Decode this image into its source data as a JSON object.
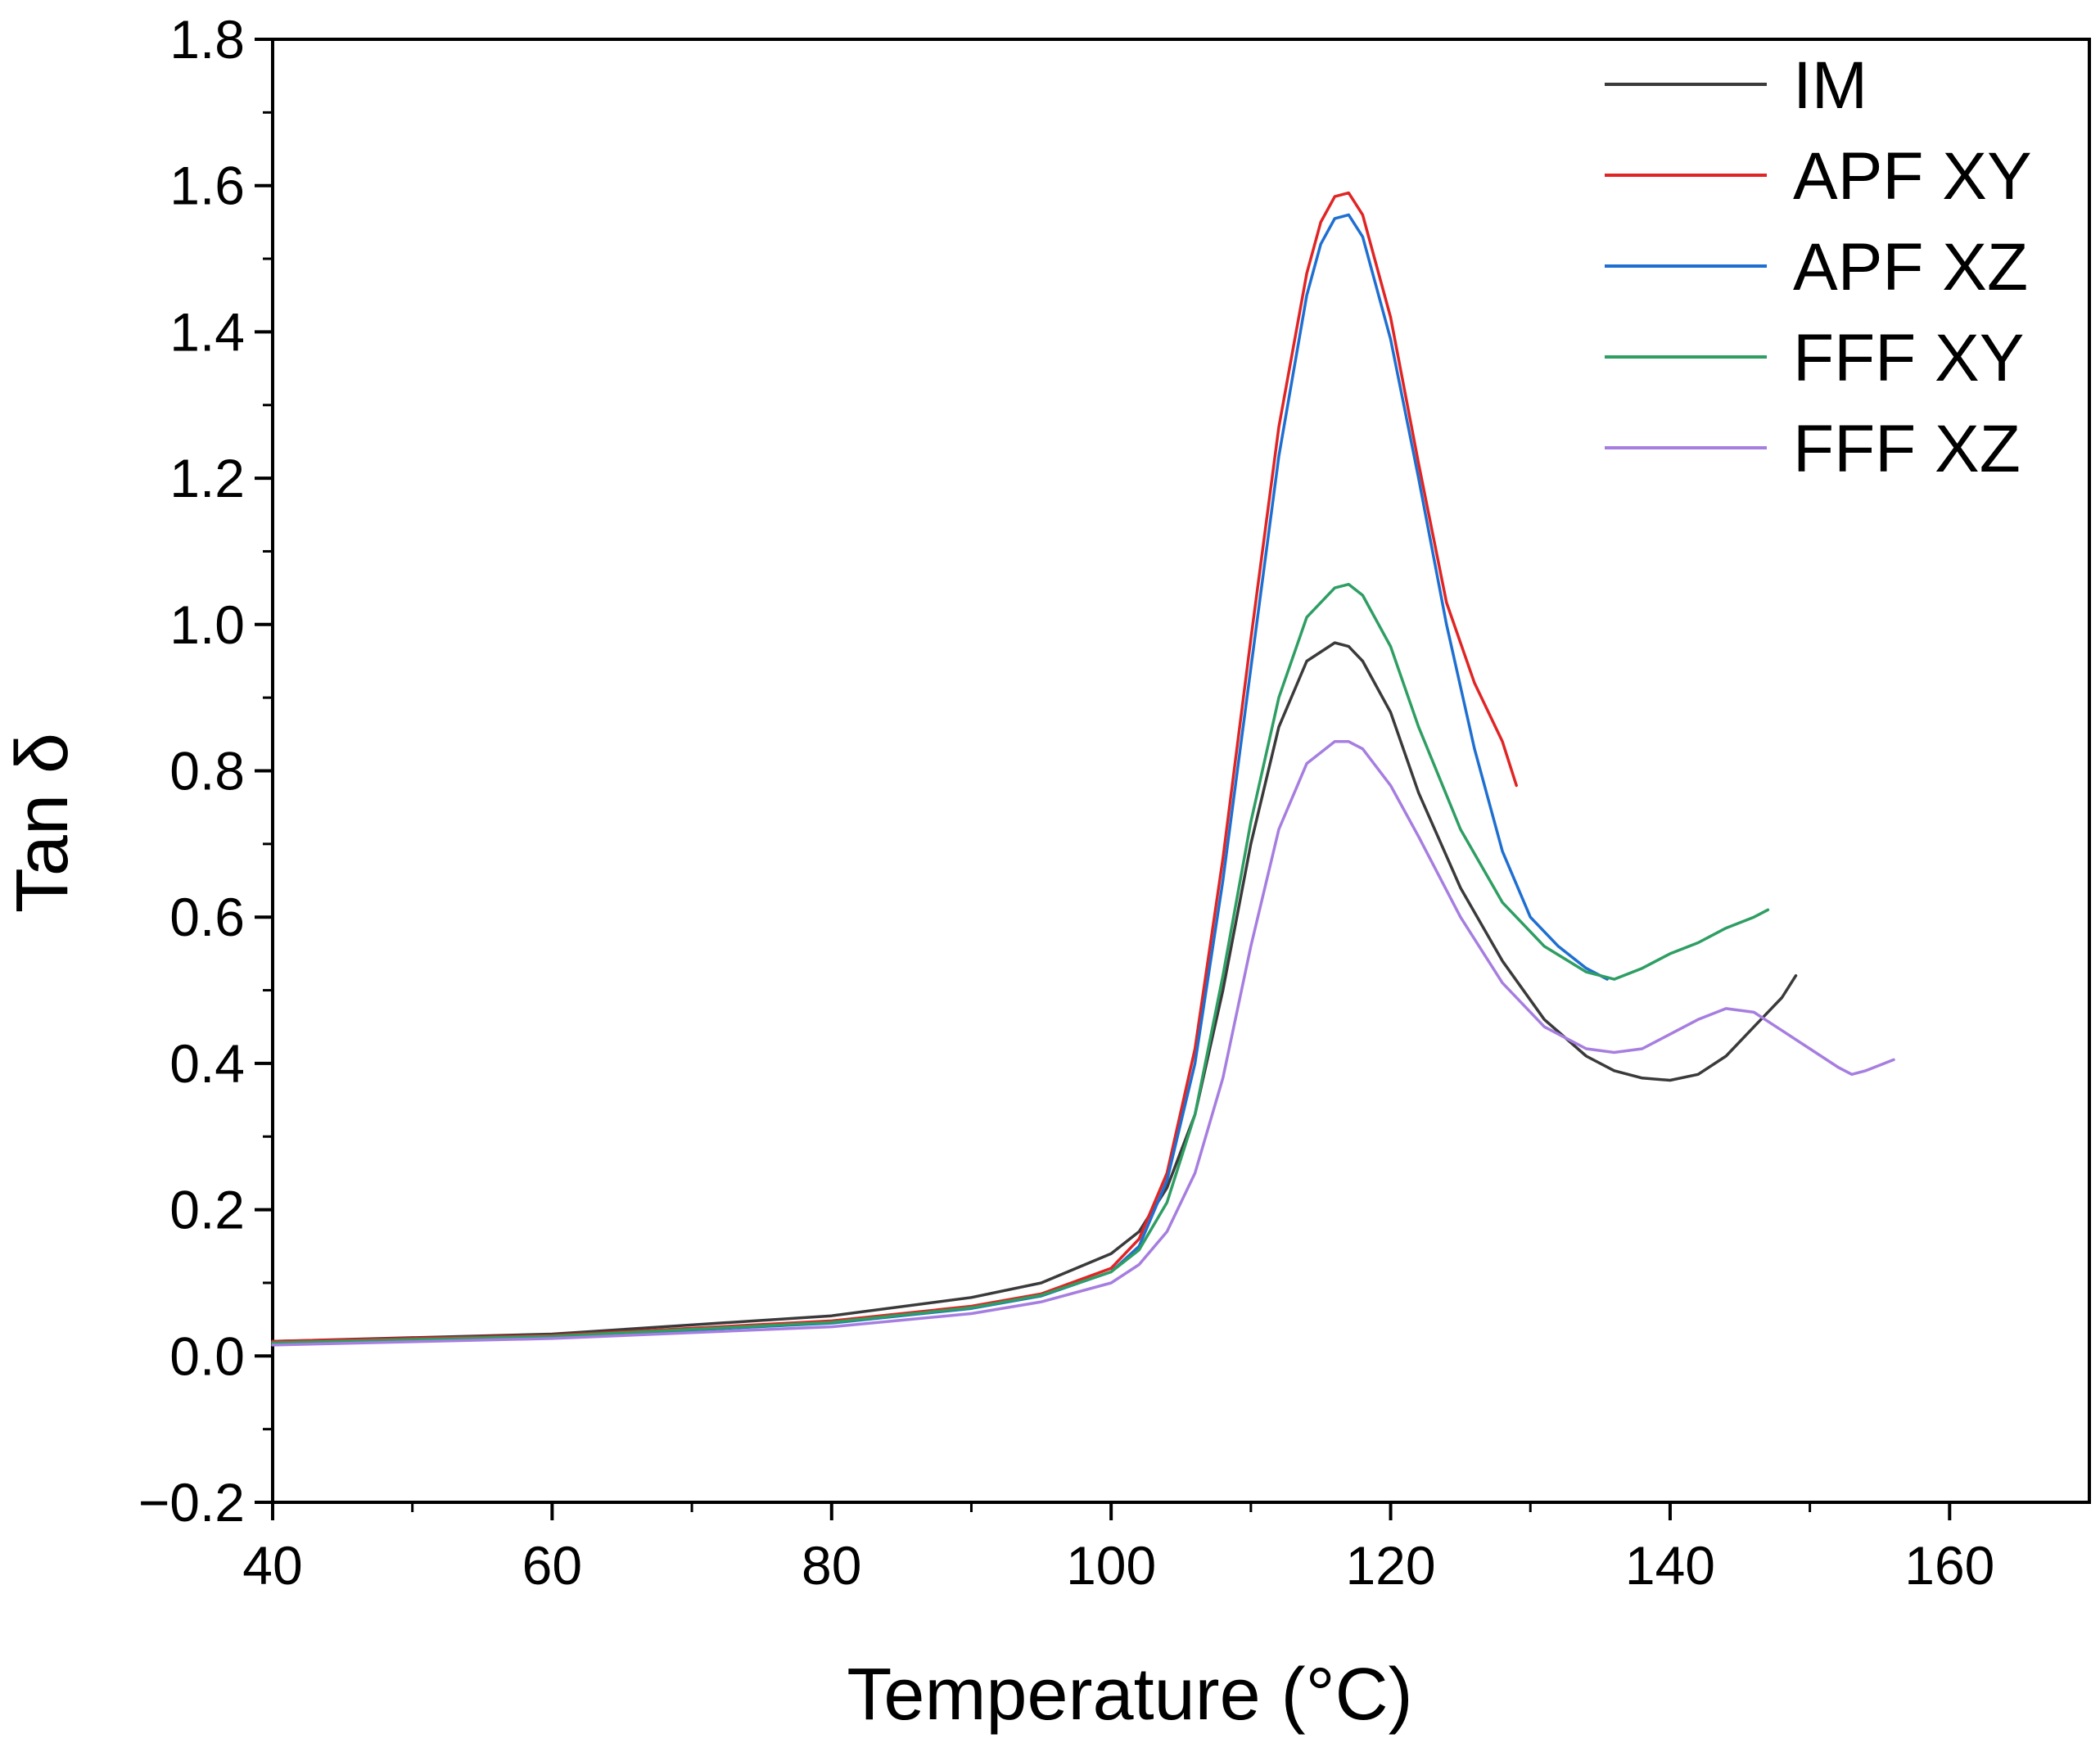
{
  "chart_data": {
    "type": "line",
    "title": "",
    "xlabel": "Temperature (°C)",
    "ylabel": "Tan δ",
    "xlim": [
      40,
      170
    ],
    "ylim": [
      -0.2,
      1.8
    ],
    "xticks": [
      40,
      60,
      80,
      100,
      120,
      140,
      160
    ],
    "xtick_labels": [
      "40",
      "60",
      "80",
      "100",
      "120",
      "140",
      "160"
    ],
    "yticks": [
      -0.2,
      0.0,
      0.2,
      0.4,
      0.6,
      0.8,
      1.0,
      1.2,
      1.4,
      1.6,
      1.8
    ],
    "ytick_labels": [
      "−0.2",
      "0.0",
      "0.2",
      "0.4",
      "0.6",
      "0.8",
      "1.0",
      "1.2",
      "1.4",
      "1.6",
      "1.8"
    ],
    "grid": false,
    "legend_position": "top-right",
    "series": [
      {
        "name": "IM",
        "color": "#3a3a3a",
        "x": [
          40,
          60,
          80,
          90,
          95,
          100,
          102,
          104,
          106,
          108,
          110,
          112,
          114,
          116,
          117,
          118,
          120,
          122,
          125,
          128,
          131,
          134,
          136,
          138,
          140,
          142,
          144,
          146,
          148,
          149
        ],
        "y": [
          0.02,
          0.03,
          0.055,
          0.08,
          0.1,
          0.14,
          0.17,
          0.23,
          0.33,
          0.5,
          0.7,
          0.86,
          0.95,
          0.975,
          0.97,
          0.95,
          0.88,
          0.77,
          0.64,
          0.54,
          0.46,
          0.41,
          0.39,
          0.38,
          0.377,
          0.385,
          0.41,
          0.45,
          0.49,
          0.52
        ]
      },
      {
        "name": "APF XY",
        "color": "#e02525",
        "x": [
          40,
          60,
          80,
          90,
          95,
          100,
          102,
          104,
          106,
          108,
          110,
          112,
          114,
          115,
          116,
          117,
          118,
          120,
          122,
          124,
          126,
          128,
          129
        ],
        "y": [
          0.02,
          0.028,
          0.048,
          0.068,
          0.085,
          0.12,
          0.16,
          0.25,
          0.42,
          0.68,
          0.98,
          1.27,
          1.48,
          1.55,
          1.585,
          1.59,
          1.56,
          1.42,
          1.22,
          1.03,
          0.92,
          0.84,
          0.78
        ]
      },
      {
        "name": "APF XZ",
        "color": "#1f6fd1",
        "x": [
          40,
          60,
          80,
          90,
          95,
          100,
          102,
          104,
          106,
          108,
          110,
          112,
          114,
          115,
          116,
          117,
          118,
          120,
          122,
          124,
          126,
          128,
          130,
          132,
          134,
          135.5
        ],
        "y": [
          0.018,
          0.026,
          0.045,
          0.065,
          0.082,
          0.115,
          0.15,
          0.24,
          0.4,
          0.65,
          0.94,
          1.23,
          1.45,
          1.52,
          1.555,
          1.56,
          1.53,
          1.39,
          1.2,
          1.0,
          0.83,
          0.69,
          0.6,
          0.56,
          0.53,
          0.515
        ]
      },
      {
        "name": "FFF XY",
        "color": "#2e9e63",
        "x": [
          40,
          60,
          80,
          90,
          95,
          100,
          102,
          104,
          106,
          108,
          110,
          112,
          114,
          116,
          117,
          118,
          120,
          122,
          125,
          128,
          131,
          134,
          136,
          138,
          140,
          142,
          144,
          146,
          147
        ],
        "y": [
          0.018,
          0.027,
          0.046,
          0.066,
          0.083,
          0.115,
          0.145,
          0.21,
          0.33,
          0.52,
          0.73,
          0.9,
          1.01,
          1.05,
          1.055,
          1.04,
          0.97,
          0.86,
          0.72,
          0.62,
          0.56,
          0.525,
          0.515,
          0.53,
          0.55,
          0.565,
          0.585,
          0.6,
          0.61
        ]
      },
      {
        "name": "FFF XZ",
        "color": "#a67ee0",
        "x": [
          40,
          60,
          80,
          90,
          95,
          100,
          102,
          104,
          106,
          108,
          110,
          112,
          114,
          116,
          117,
          118,
          120,
          122,
          125,
          128,
          131,
          134,
          136,
          138,
          140,
          142,
          144,
          146,
          148,
          150,
          152,
          153,
          154,
          156
        ],
        "y": [
          0.015,
          0.024,
          0.04,
          0.058,
          0.074,
          0.1,
          0.125,
          0.17,
          0.25,
          0.38,
          0.56,
          0.72,
          0.81,
          0.84,
          0.84,
          0.83,
          0.78,
          0.71,
          0.6,
          0.51,
          0.45,
          0.42,
          0.415,
          0.42,
          0.44,
          0.46,
          0.475,
          0.47,
          0.445,
          0.42,
          0.395,
          0.385,
          0.39,
          0.405
        ]
      }
    ]
  }
}
